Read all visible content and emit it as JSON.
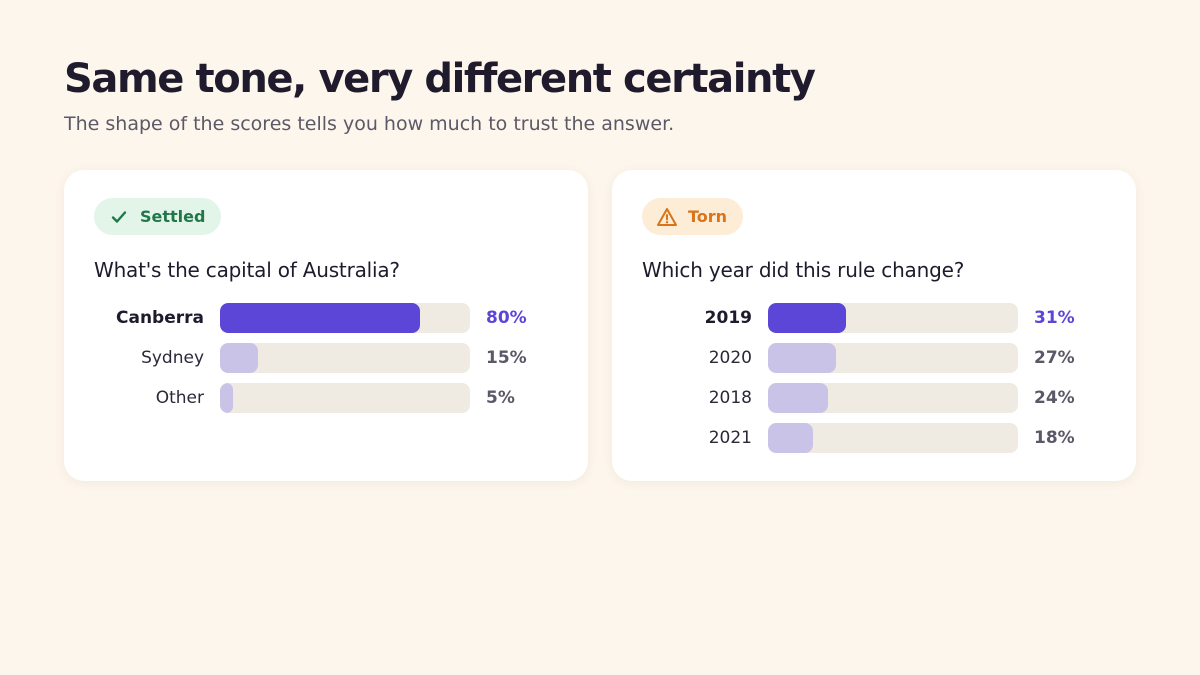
{
  "header": {
    "title": "Same tone, very different certainty",
    "subtitle": "The shape of the scores tells you how much to trust the answer."
  },
  "colors": {
    "background": "#fdf6ec",
    "top_bar": "#5b46d8",
    "other_bar": "#c9c3e8",
    "track": "#f0ebe2",
    "settled_text": "#21774a",
    "settled_bg": "#e3f4e9",
    "torn_text": "#d9741a",
    "torn_bg": "#fdecd6"
  },
  "cards": [
    {
      "badge": {
        "label": "Settled",
        "icon": "check-icon"
      },
      "question": "What's the capital of Australia?"
    },
    {
      "badge": {
        "label": "Torn",
        "icon": "warning-icon"
      },
      "question": "Which year did this rule change?"
    }
  ],
  "chart_data": [
    {
      "type": "bar",
      "orientation": "horizontal",
      "categories": [
        "Canberra",
        "Sydney",
        "Other"
      ],
      "values": [
        80,
        15,
        5
      ],
      "value_labels": [
        "80%",
        "15%",
        "5%"
      ],
      "xlim": [
        0,
        100
      ],
      "highlight_index": 0
    },
    {
      "type": "bar",
      "orientation": "horizontal",
      "categories": [
        "2019",
        "2020",
        "2018",
        "2021"
      ],
      "values": [
        31,
        27,
        24,
        18
      ],
      "value_labels": [
        "31%",
        "27%",
        "24%",
        "18%"
      ],
      "xlim": [
        0,
        100
      ],
      "highlight_index": 0
    }
  ]
}
